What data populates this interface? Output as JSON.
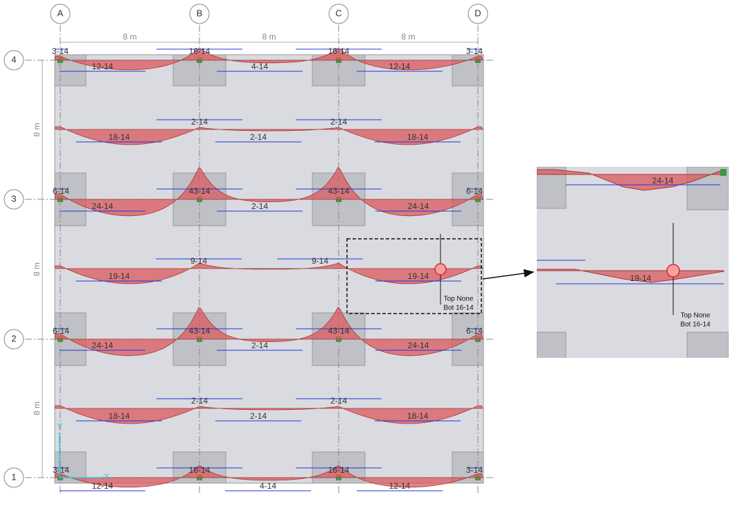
{
  "grid": {
    "columns": [
      "A",
      "B",
      "C",
      "D"
    ],
    "rows": [
      "4",
      "3",
      "2",
      "1"
    ]
  },
  "dimensions": {
    "top": [
      "8 m",
      "8 m",
      "8 m"
    ],
    "left": [
      "8 m",
      "8 m",
      "8 m"
    ]
  },
  "strips": [
    {
      "labels": [
        "3-14",
        "16-14",
        "16-14",
        "3-14",
        "12-14",
        "4-14",
        "12-14"
      ]
    },
    {
      "labels": [
        "2-14",
        "2-14",
        "18-14",
        "2-14",
        "18-14"
      ]
    },
    {
      "labels": [
        "6-14",
        "43-14",
        "43-14",
        "6-14",
        "24-14",
        "2-14",
        "24-14"
      ]
    },
    {
      "labels": [
        "9-14",
        "9-14",
        "19-14",
        "19-14"
      ]
    },
    {
      "labels": [
        "6-14",
        "43-14",
        "43-14",
        "6-14",
        "24-14",
        "2-14",
        "24-14"
      ]
    },
    {
      "labels": [
        "2-14",
        "2-14",
        "18-14",
        "2-14",
        "18-14"
      ]
    },
    {
      "labels": [
        "3-14",
        "16-14",
        "16-14",
        "3-14",
        "12-14",
        "4-14",
        "12-14"
      ]
    }
  ],
  "axes": {
    "x": "X",
    "y": "Y"
  },
  "callout": {
    "top": "Top None",
    "bottom": "Bot 16-14"
  },
  "inset": {
    "labels": [
      "24-14",
      "19-14"
    ],
    "callout": {
      "top": "Top None",
      "bottom": "Bot 16-14"
    }
  }
}
